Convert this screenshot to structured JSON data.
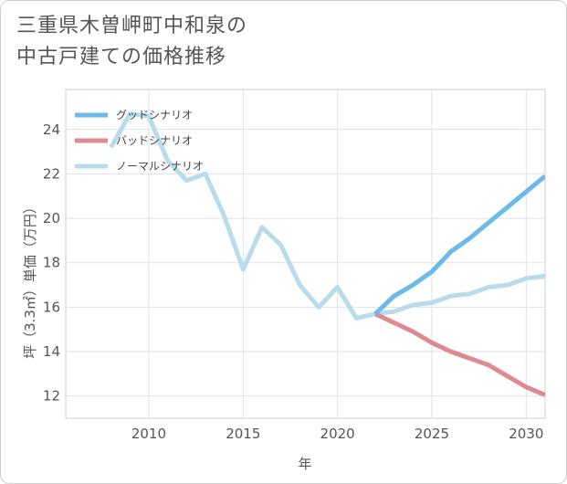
{
  "title_lines": [
    "三重県木曽岬町中和泉の",
    "中古戸建ての価格推移"
  ],
  "chart_data": {
    "type": "line",
    "title": "三重県木曽岬町中和泉の中古戸建ての価格推移",
    "xlabel": "年",
    "ylabel": "坪（3.3㎡）単価（万円）",
    "xlim": [
      2005.6,
      2031
    ],
    "ylim": [
      11,
      25.8
    ],
    "x_ticks": [
      2010,
      2015,
      2020,
      2025,
      2030
    ],
    "y_ticks": [
      12,
      14,
      16,
      18,
      20,
      22,
      24
    ],
    "grid": true,
    "legend_position": "top-left",
    "series": [
      {
        "name": "グッドシナリオ",
        "color": "#6cb9ea",
        "x": [
          2022,
          2023,
          2024,
          2025,
          2026,
          2027,
          2028,
          2029,
          2030,
          2031
        ],
        "values": [
          15.7,
          16.5,
          17.0,
          17.6,
          18.5,
          19.1,
          19.8,
          20.5,
          21.2,
          21.9
        ]
      },
      {
        "name": "バッドシナリオ",
        "color": "#de8a93",
        "x": [
          2022,
          2023,
          2024,
          2025,
          2026,
          2027,
          2028,
          2029,
          2030,
          2031
        ],
        "values": [
          15.7,
          15.3,
          14.9,
          14.4,
          14.0,
          13.7,
          13.4,
          12.9,
          12.4,
          12.05
        ]
      },
      {
        "name": "ノーマルシナリオ",
        "color": "#b9dcec",
        "x": [
          2008,
          2009,
          2010,
          2011,
          2012,
          2013,
          2014,
          2015,
          2016,
          2017,
          2018,
          2019,
          2020,
          2021,
          2022,
          2023,
          2024,
          2025,
          2026,
          2027,
          2028,
          2029,
          2030,
          2031
        ],
        "values": [
          23.2,
          24.7,
          24.6,
          22.6,
          21.7,
          22.0,
          20.1,
          17.7,
          19.6,
          18.8,
          17.0,
          16.0,
          16.9,
          15.5,
          15.7,
          15.8,
          16.1,
          16.2,
          16.5,
          16.6,
          16.9,
          17.0,
          17.3,
          17.4
        ]
      }
    ]
  }
}
